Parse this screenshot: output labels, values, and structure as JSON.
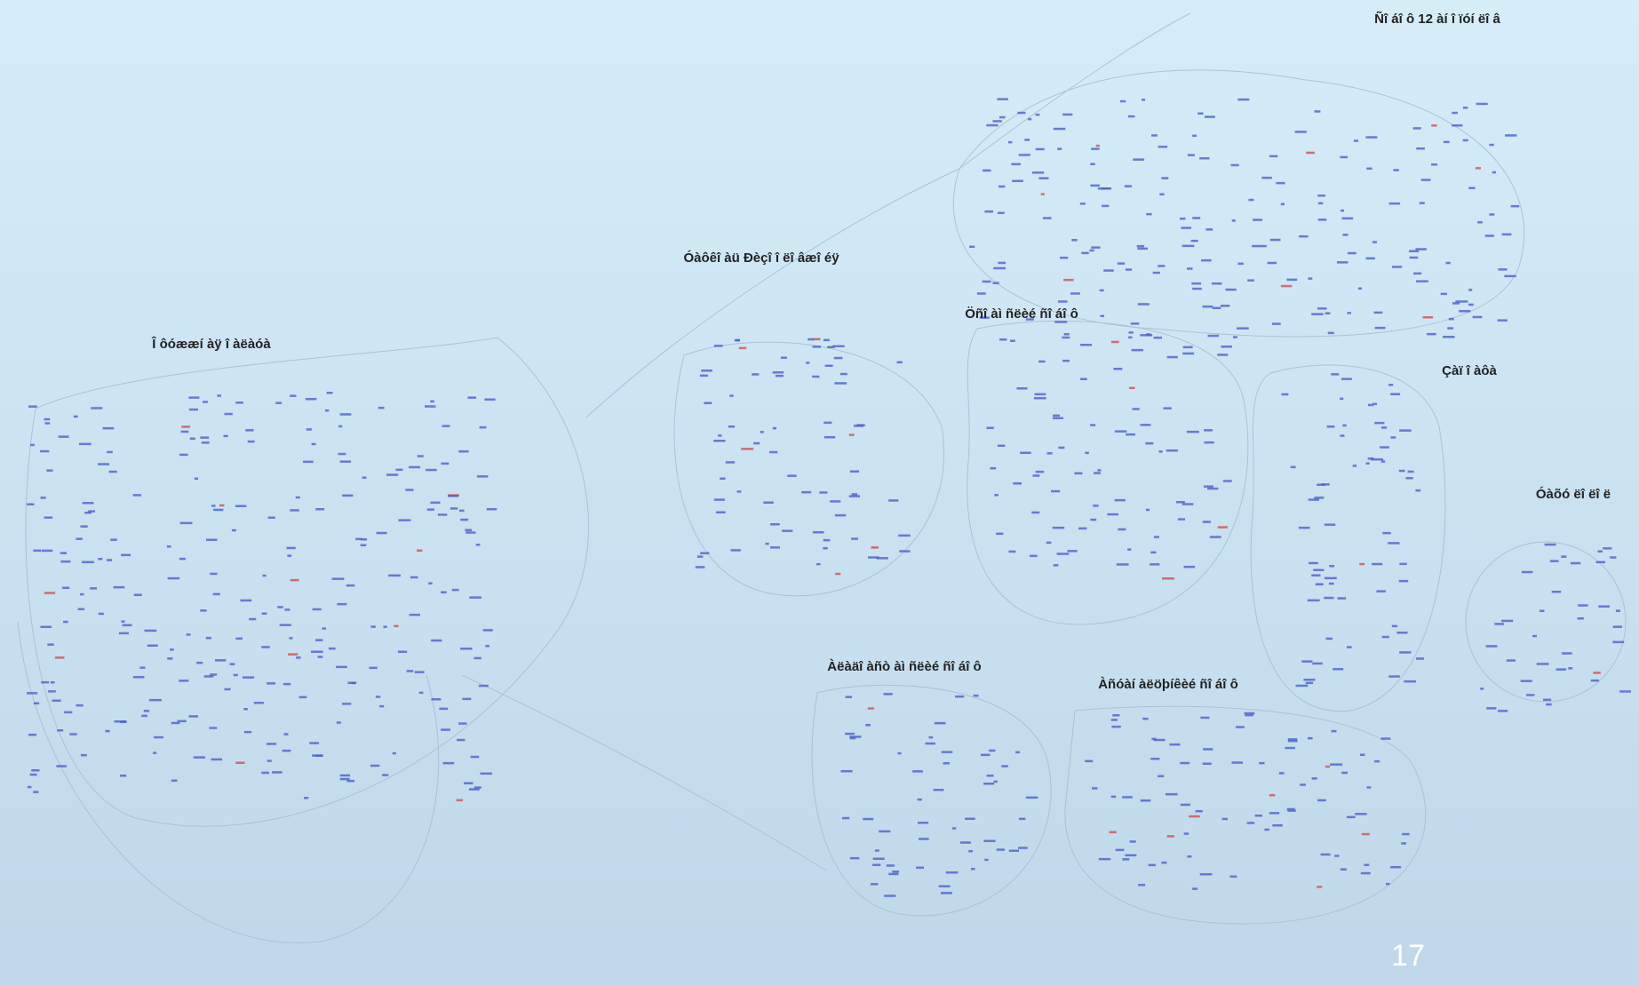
{
  "clusters": [
    {
      "label": "Ñî áî ô 12 àí î ïóí ëî â"
    },
    {
      "label": "Óàôêî àü Ðèçî î ëî âæî éÿ"
    },
    {
      "label": "Î ôóææí àÿ î àëàóà"
    },
    {
      "label": "Öñî àì ñëèé ñî áî ô"
    },
    {
      "label": "Çàï î àôà"
    },
    {
      "label": "Óàõó ëî ëî ë"
    },
    {
      "label": "Àëàäî àñò àì ñëèé ñî áî ô"
    },
    {
      "label": "Àñóàí àëöþíêèé ñî áî ô"
    }
  ],
  "page_number": "17"
}
